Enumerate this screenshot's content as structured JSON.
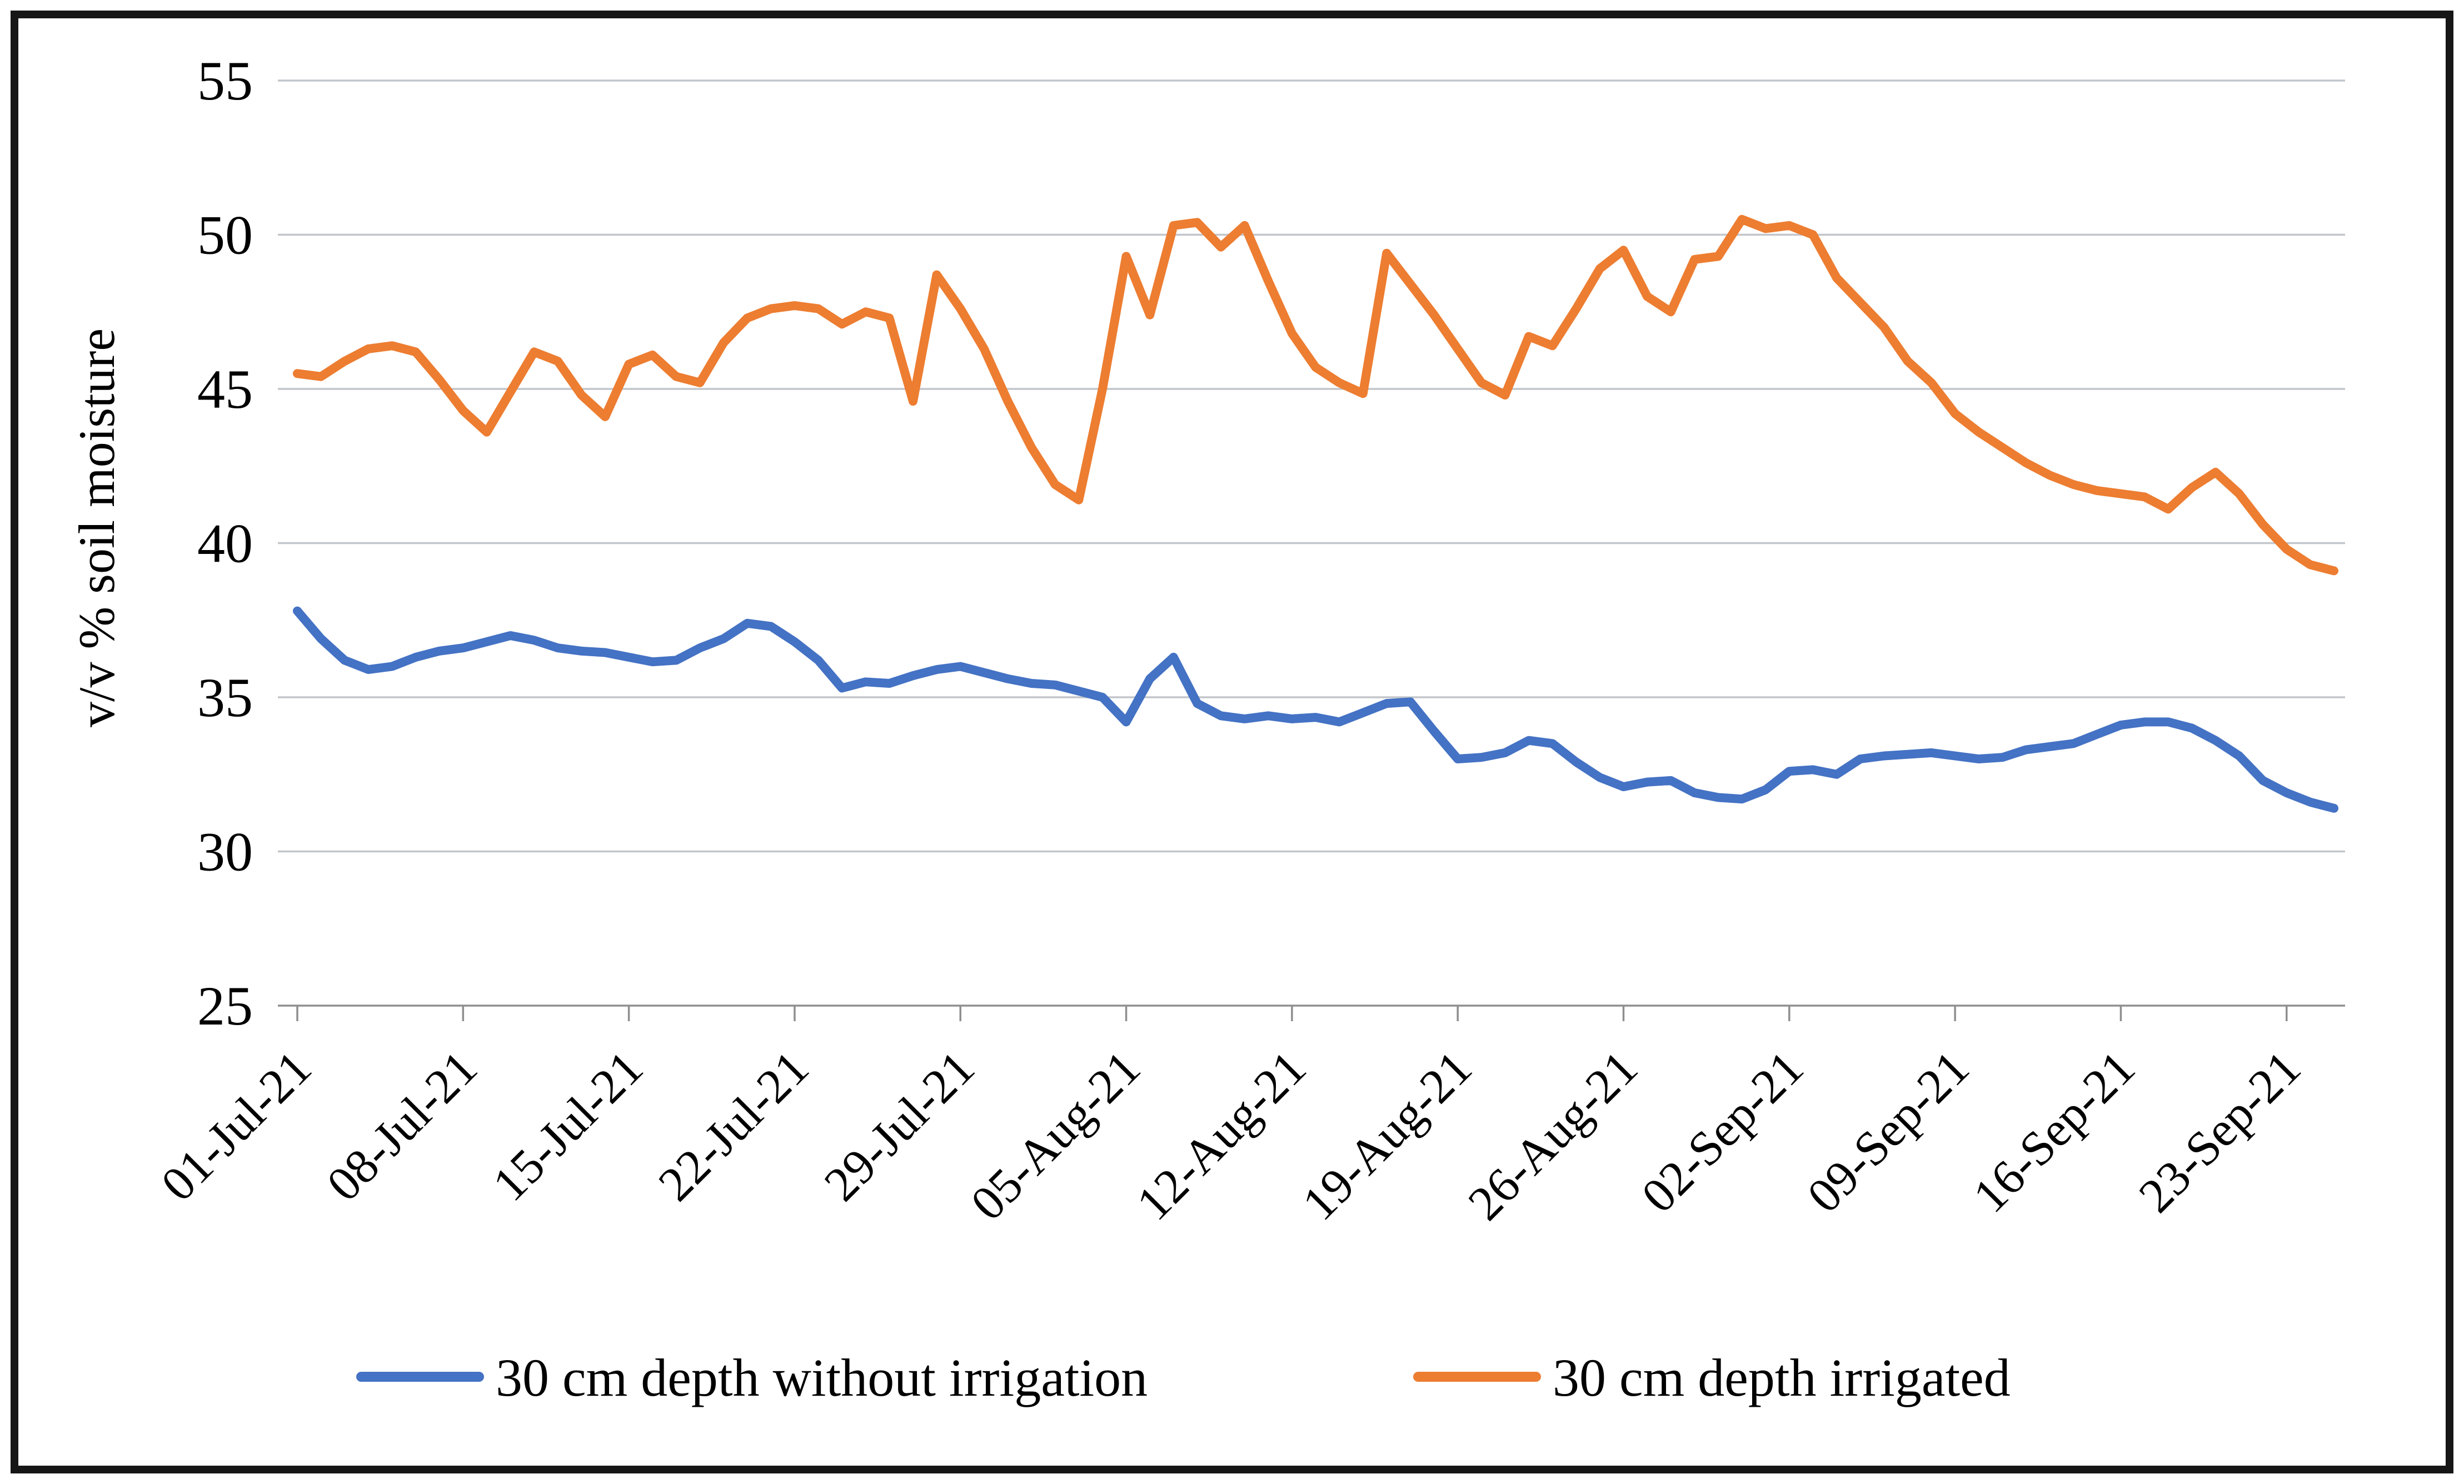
{
  "chart_data": {
    "type": "line",
    "title": "",
    "xlabel": "",
    "ylabel": "v/v % soil moisture",
    "ylim": [
      25,
      55
    ],
    "ytick_step": 5,
    "ytick_labels": [
      "25",
      "30",
      "35",
      "40",
      "45",
      "50",
      "55"
    ],
    "grid": "horizontal",
    "legend_position": "bottom",
    "x_tick_labels": [
      "01-Jul-21",
      "08-Jul-21",
      "15-Jul-21",
      "22-Jul-21",
      "29-Jul-21",
      "05-Aug-21",
      "12-Aug-21",
      "19-Aug-21",
      "26-Aug-21",
      "02-Sep-21",
      "09-Sep-21",
      "16-Sep-21",
      "23-Sep-21"
    ],
    "x_tick_interval_days": 7,
    "n_points": 87,
    "series": [
      {
        "name": "30 cm depth without irrigation",
        "color": "#4472C4",
        "values": [
          37.8,
          36.9,
          36.2,
          35.9,
          36.0,
          36.3,
          36.5,
          36.6,
          36.8,
          37.0,
          36.85,
          36.6,
          36.5,
          36.45,
          36.3,
          36.15,
          36.2,
          36.6,
          36.9,
          37.4,
          37.3,
          36.8,
          36.2,
          35.3,
          35.5,
          35.45,
          35.7,
          35.9,
          36.0,
          35.8,
          35.6,
          35.45,
          35.4,
          35.2,
          35.0,
          34.2,
          35.6,
          36.3,
          34.8,
          34.4,
          34.3,
          34.4,
          34.3,
          34.35,
          34.2,
          34.5,
          34.8,
          34.85,
          33.9,
          33.0,
          33.05,
          33.2,
          33.6,
          33.5,
          32.9,
          32.4,
          32.1,
          32.25,
          32.3,
          31.9,
          31.75,
          31.7,
          32.0,
          32.6,
          32.65,
          32.5,
          33.0,
          33.1,
          33.15,
          33.2,
          33.1,
          33.0,
          33.05,
          33.3,
          33.4,
          33.5,
          33.8,
          34.1,
          34.2,
          34.2,
          34.0,
          33.6,
          33.1,
          32.3,
          31.9,
          31.6,
          31.4
        ]
      },
      {
        "name": "30 cm depth irrigated",
        "color": "#ED7D31",
        "values": [
          45.5,
          45.4,
          45.9,
          46.3,
          46.4,
          46.2,
          45.3,
          44.3,
          43.6,
          44.9,
          46.2,
          45.9,
          44.8,
          44.1,
          45.8,
          46.1,
          45.4,
          45.2,
          46.5,
          47.3,
          47.6,
          47.7,
          47.6,
          47.1,
          47.5,
          47.3,
          44.6,
          48.7,
          47.6,
          46.3,
          44.6,
          43.1,
          41.9,
          41.4,
          45.0,
          49.3,
          47.4,
          50.3,
          50.4,
          49.6,
          50.3,
          48.5,
          46.8,
          45.7,
          45.2,
          44.85,
          49.4,
          48.4,
          47.4,
          46.3,
          45.2,
          44.8,
          46.7,
          46.4,
          47.6,
          48.9,
          49.5,
          48.0,
          47.5,
          49.2,
          49.3,
          50.5,
          50.2,
          50.3,
          50.0,
          48.6,
          47.8,
          47.0,
          45.9,
          45.2,
          44.2,
          43.6,
          43.1,
          42.6,
          42.2,
          41.9,
          41.7,
          41.6,
          41.5,
          41.1,
          41.8,
          42.3,
          41.6,
          40.6,
          39.8,
          39.3,
          39.1
        ]
      }
    ],
    "colors": {
      "gridline": "#C2C6CB",
      "axis": "#8F8F8F",
      "text": "#000000",
      "frame": "#161616",
      "background": "#FFFFFF"
    }
  }
}
